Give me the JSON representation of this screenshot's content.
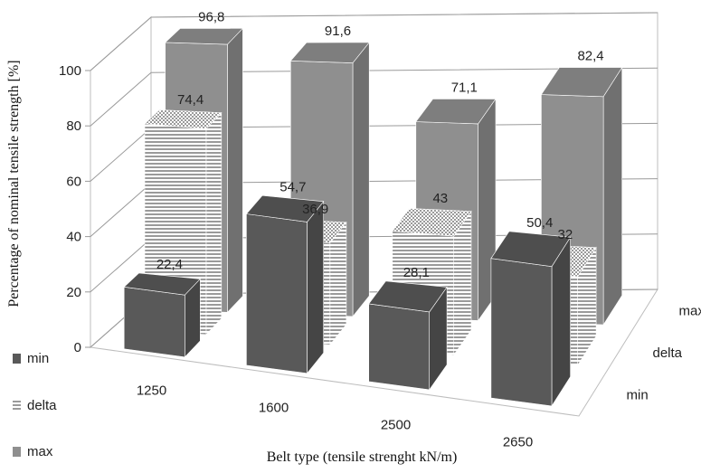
{
  "chart_data": {
    "type": "bar",
    "subtype": "3d-clustered-column",
    "categories": [
      "1250",
      "1600",
      "2500",
      "2650"
    ],
    "series": [
      {
        "name": "min",
        "values": [
          22.4,
          54.7,
          28.1,
          50.4
        ],
        "color": "#595959",
        "pattern": "solid"
      },
      {
        "name": "delta",
        "values": [
          74.4,
          36.9,
          43,
          32
        ],
        "color": "#8c8c8c",
        "pattern": "horizontal-stripes"
      },
      {
        "name": "max",
        "values": [
          96.8,
          91.6,
          71.1,
          82.4
        ],
        "color": "#8f8f8f",
        "pattern": "solid"
      }
    ],
    "data_labels": [
      [
        "22,4",
        "54,7",
        "28,1",
        "50,4"
      ],
      [
        "74,4",
        "36,9",
        "43",
        "32"
      ],
      [
        "96,8",
        "91,6",
        "71,1",
        "82,4"
      ]
    ],
    "yticks": [
      "0",
      "20",
      "40",
      "60",
      "80",
      "100"
    ],
    "ylim": [
      0,
      100
    ],
    "xlabel": "Belt type (tensile strenght  kN/m)",
    "ylabel": "Percentage of nominal tensile strength [%]",
    "legend": {
      "position": "bottom-left",
      "entries": [
        "min",
        "delta",
        "max"
      ]
    },
    "grid": true
  }
}
